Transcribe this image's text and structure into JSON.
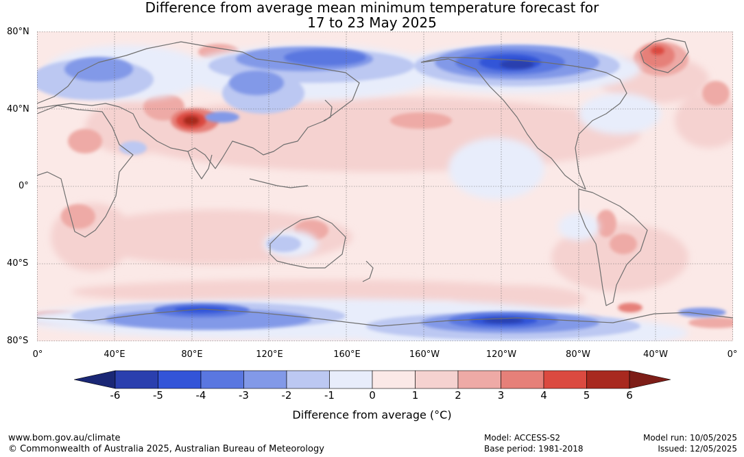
{
  "title": {
    "line1": "Difference from average mean minimum temperature forecast for",
    "line2": "17 to 23 May 2025"
  },
  "axes": {
    "lat_labels": [
      "80°N",
      "40°N",
      "0°",
      "40°S",
      "80°S"
    ],
    "lon_labels": [
      "0°",
      "40°E",
      "80°E",
      "120°E",
      "160°E",
      "160°W",
      "120°W",
      "80°W",
      "40°W",
      "0°"
    ]
  },
  "colorbar": {
    "label": "Difference from average (°C)",
    "ticks": [
      "-6",
      "-5",
      "-4",
      "-3",
      "-2",
      "-1",
      "0",
      "1",
      "2",
      "3",
      "4",
      "5",
      "6"
    ],
    "colors": [
      "#1a2775",
      "#2a3fae",
      "#3354d8",
      "#5a77e0",
      "#8299e8",
      "#bcc8f2",
      "#e8edfb",
      "#fbe9e7",
      "#f5d2d0",
      "#eeaaa6",
      "#e68079",
      "#db4a40",
      "#a8291f",
      "#7d1d17"
    ]
  },
  "chart_data": {
    "type": "heatmap",
    "title": "Difference from average mean minimum temperature forecast for 17 to 23 May 2025",
    "xlabel": "",
    "ylabel": "",
    "x_range": [
      "0°",
      "0°"
    ],
    "y_range": [
      "80°S",
      "80°N"
    ],
    "colorbar_range": [
      -6,
      6
    ],
    "colorbar_unit": "°C"
  },
  "footer": {
    "website": "www.bom.gov.au/climate",
    "copyright": "© Commonwealth of Australia 2025, Australian Bureau of Meteorology",
    "model": "Model: ACCESS-S2",
    "base_period": "Base period: 1981-2018",
    "model_run": "Model run: 10/05/2025",
    "issued": "Issued: 12/05/2025"
  }
}
